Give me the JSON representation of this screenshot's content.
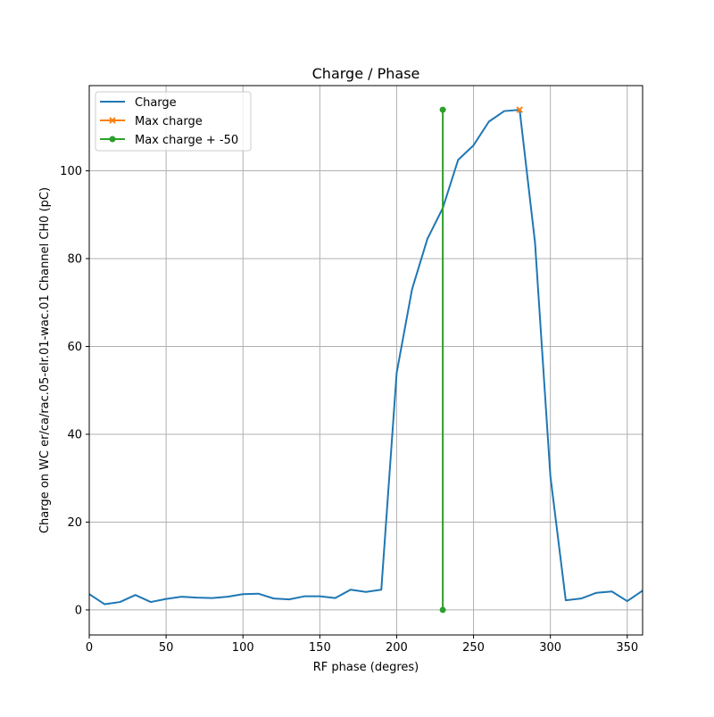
{
  "chart_data": {
    "type": "line",
    "title": "Charge / Phase",
    "xlabel": "RF phase (degres)",
    "ylabel": "Charge on WC er/ca/rac.05-elr.01-wac.01 Channel CH0 (pC)",
    "xlim": [
      0,
      360
    ],
    "ylim": [
      -5.7,
      119.4
    ],
    "x_ticks": [
      0,
      50,
      100,
      150,
      200,
      250,
      300,
      350
    ],
    "y_ticks": [
      0,
      20,
      40,
      60,
      80,
      100
    ],
    "grid": true,
    "legend_position": "top-left",
    "series": [
      {
        "name": "Charge",
        "color": "#1f77b4",
        "marker": "none",
        "x": [
          0,
          10,
          20,
          30,
          40,
          50,
          60,
          70,
          80,
          90,
          100,
          110,
          120,
          130,
          140,
          150,
          160,
          170,
          180,
          190,
          200,
          210,
          220,
          230,
          240,
          250,
          260,
          270,
          280,
          290,
          300,
          310,
          320,
          330,
          340,
          350,
          360
        ],
        "y": [
          3.6,
          1.3,
          1.8,
          3.4,
          1.8,
          2.5,
          3.0,
          2.8,
          2.7,
          3.0,
          3.6,
          3.7,
          2.6,
          2.4,
          3.1,
          3.1,
          2.7,
          4.6,
          4.1,
          4.6,
          54.0,
          73.0,
          84.5,
          91.5,
          102.5,
          105.8,
          111.2,
          113.6,
          113.9,
          83.7,
          30.5,
          2.2,
          2.6,
          3.9,
          4.2,
          2.0,
          4.4
        ]
      },
      {
        "name": "Max charge",
        "color": "#ff7f0e",
        "marker": "x",
        "x": [
          280
        ],
        "y": [
          113.9
        ]
      },
      {
        "name": "Max charge + -50",
        "color": "#2ca02c",
        "marker": "o",
        "x": [
          230,
          230
        ],
        "y": [
          0,
          113.9
        ]
      }
    ]
  }
}
